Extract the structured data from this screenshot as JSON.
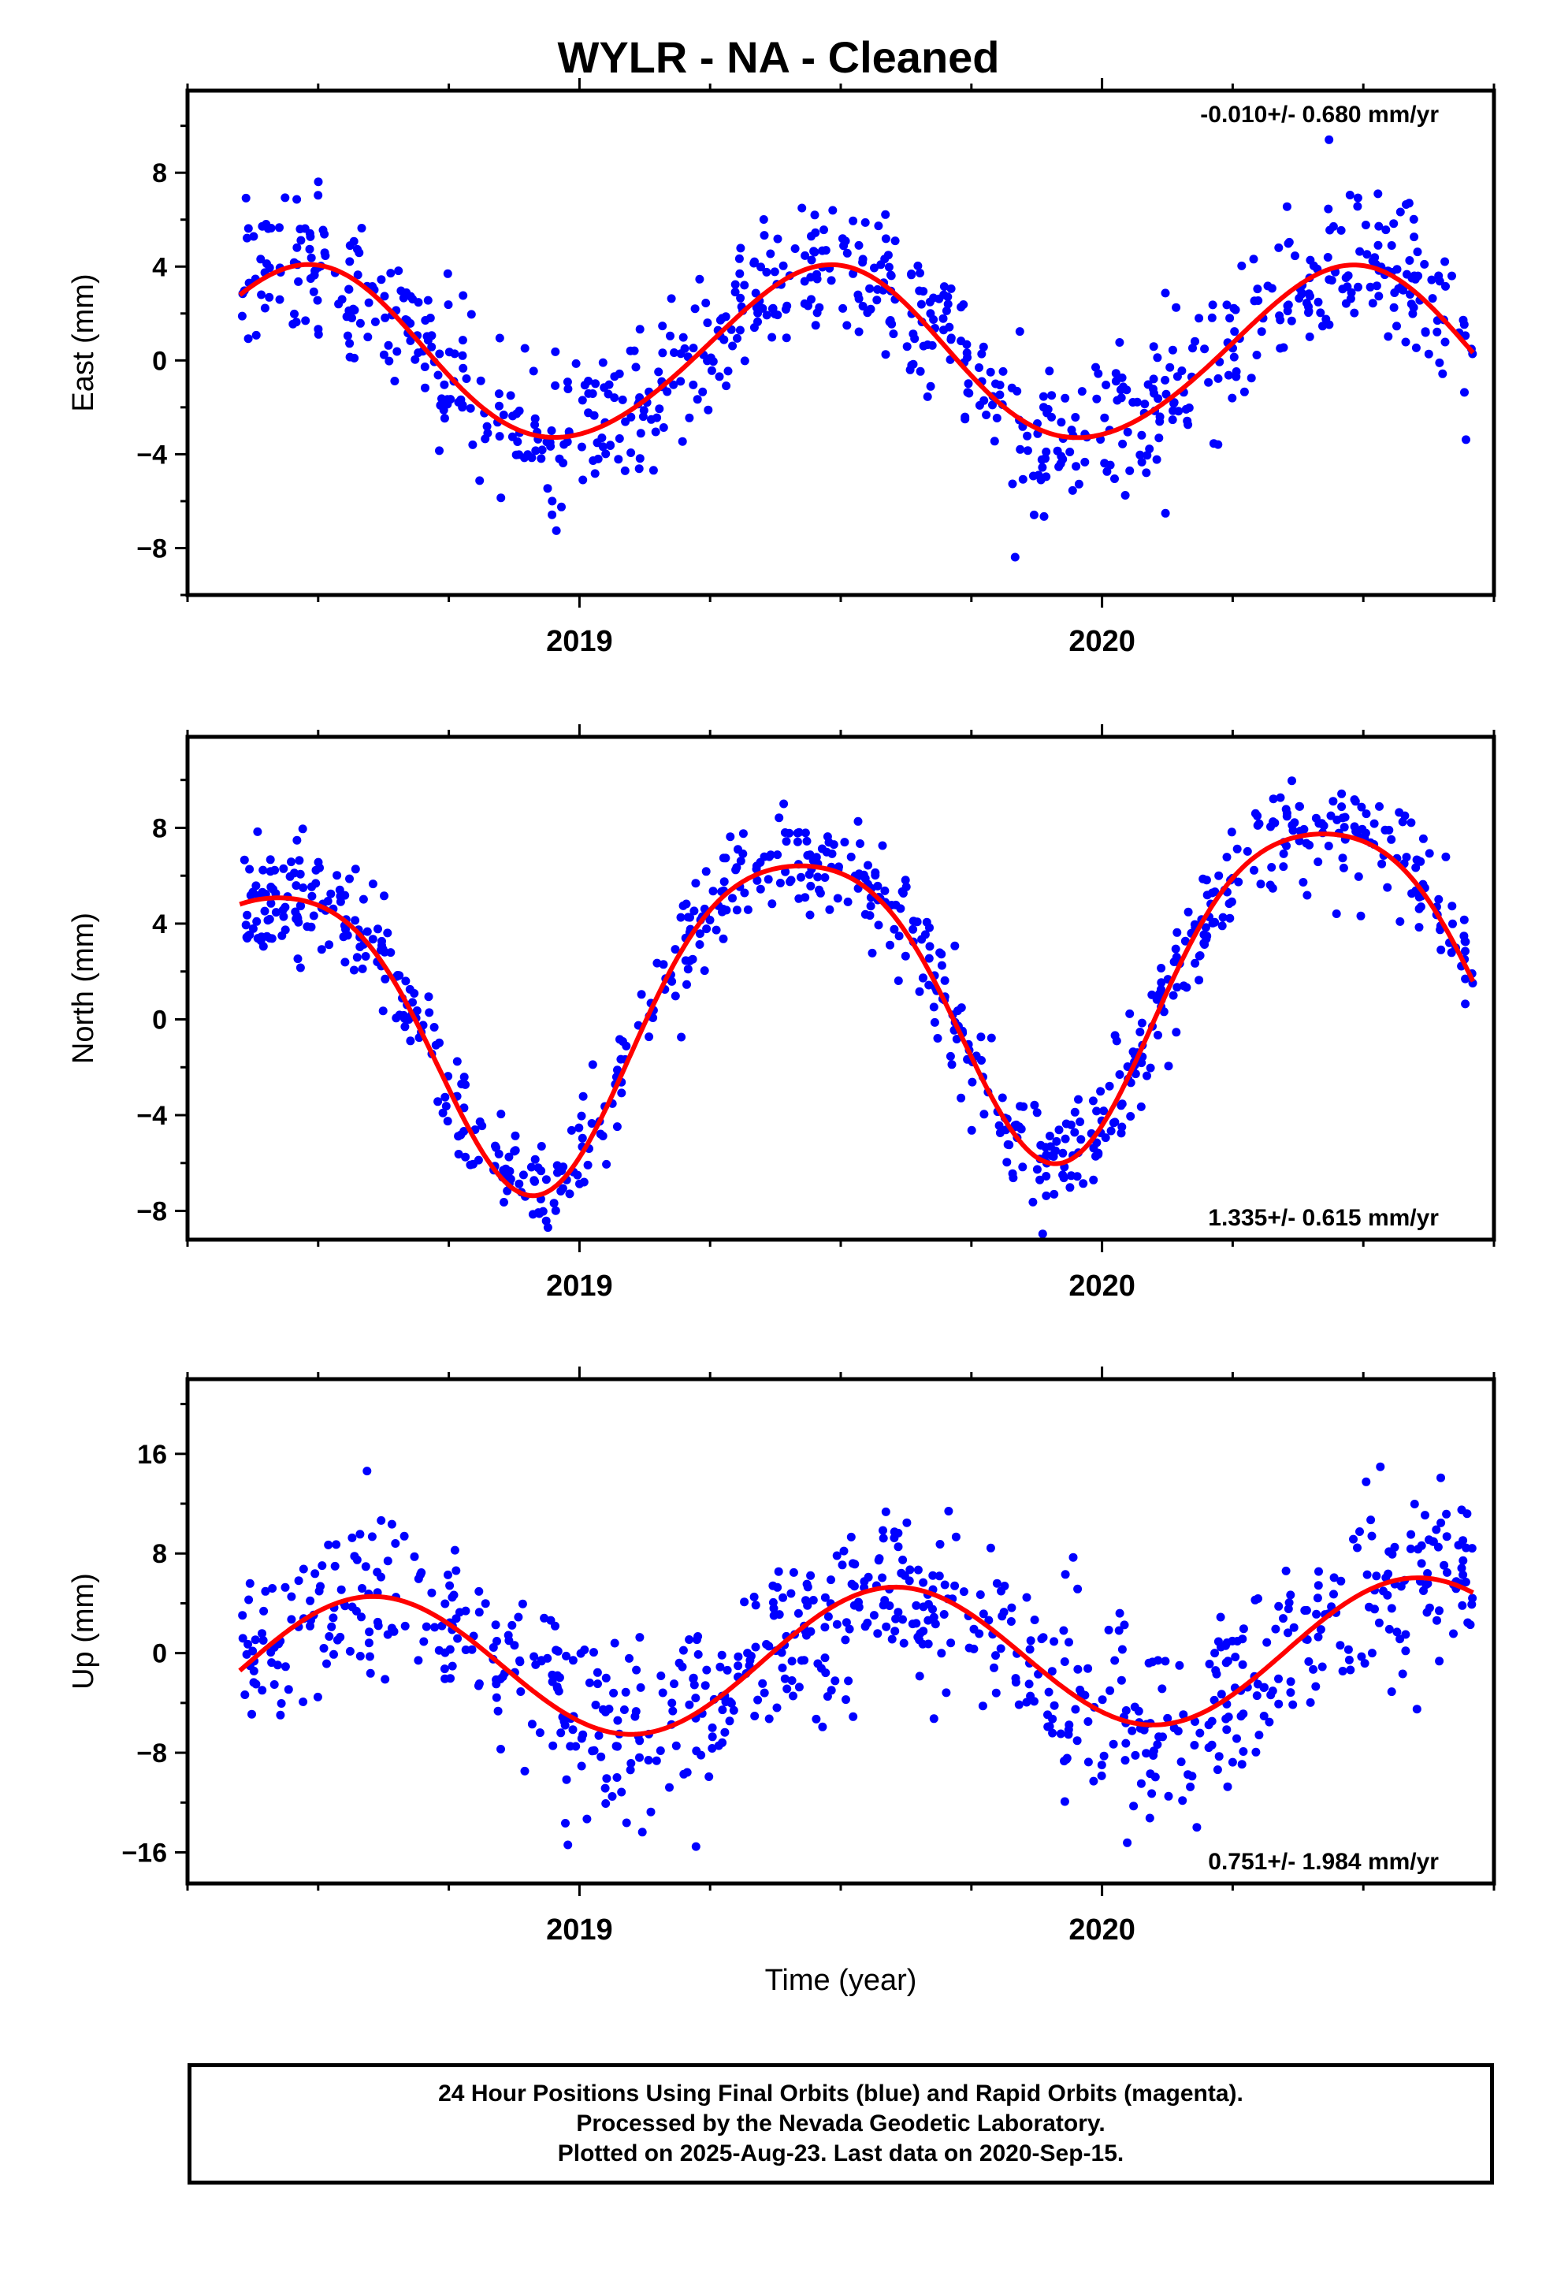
{
  "title": "WYLR  - NA - Cleaned",
  "xlabel": "Time (year)",
  "footer": {
    "line1": "24 Hour Positions Using Final Orbits (blue) and Rapid Orbits (magenta).",
    "line2": "Processed by the Nevada Geodetic Laboratory.",
    "line3": "Plotted on 2025-Aug-23. Last data on 2020-Sep-15."
  },
  "colors": {
    "points": "#0000ff",
    "fit": "#ff0000",
    "axes": "#000000"
  },
  "chart_data": [
    {
      "type": "scatter",
      "component": "east",
      "ylabel": "East (mm)",
      "rate_label": "-0.010+/- 0.680 mm/yr",
      "rate_position": "top-right",
      "xlim": [
        2018.25,
        2020.75
      ],
      "ylim": [
        -10,
        11.5
      ],
      "yticks": [
        -8,
        -4,
        0,
        4,
        8
      ],
      "xticks": [
        2019,
        2020
      ],
      "fit_model": {
        "offset": 0.25,
        "annual_cos": -3.6,
        "annual_sin": 0.7,
        "semiannual_cos": 0.2,
        "semiannual_sin": 0.1,
        "trend": -0.01
      },
      "noise_sd": 1.6,
      "seed": 11,
      "n_points": 760
    },
    {
      "type": "scatter",
      "component": "north",
      "ylabel": "North (mm)",
      "rate_label": "1.335+/- 0.615 mm/yr",
      "rate_position": "bottom-right",
      "xlim": [
        2018.25,
        2020.75
      ],
      "ylim": [
        -9.2,
        11.8
      ],
      "yticks": [
        -8,
        -4,
        0,
        4,
        8
      ],
      "xticks": [
        2019,
        2020
      ],
      "fit_model": {
        "offset": 1.0,
        "annual_cos": -5.6,
        "annual_sin": 3.4,
        "semiannual_cos": -0.5,
        "semiannual_sin": 0.9,
        "trend": 1.335
      },
      "noise_sd": 1.1,
      "seed": 23,
      "n_points": 760
    },
    {
      "type": "scatter",
      "component": "up",
      "ylabel": "Up (mm)",
      "rate_label": "0.751+/- 1.984 mm/yr",
      "rate_position": "bottom-right",
      "xlim": [
        2018.25,
        2020.75
      ],
      "ylim": [
        -18.5,
        22
      ],
      "yticks": [
        -16,
        -8,
        0,
        8,
        16
      ],
      "xticks": [
        2019,
        2020
      ],
      "fit_model": {
        "offset": -0.5,
        "annual_cos": -4.6,
        "annual_sin": -3.4,
        "semiannual_cos": 0.0,
        "semiannual_sin": 0.0,
        "trend": 0.751
      },
      "noise_sd": 3.6,
      "seed": 37,
      "n_points": 760
    }
  ]
}
